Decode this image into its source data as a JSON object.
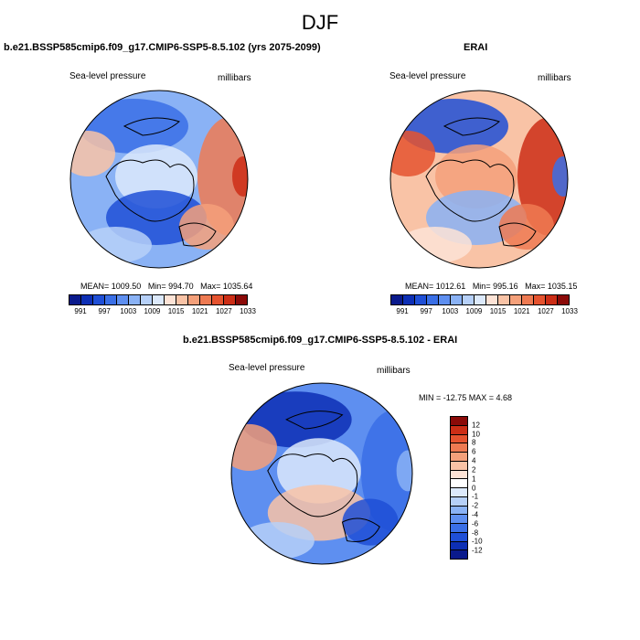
{
  "title": "DJF",
  "panels": [
    {
      "title": "b.e21.BSSP585cmip6.f09_g17.CMIP6-SSP5-8.5.102 (yrs 2075-2099)",
      "left_label": "Sea-level pressure",
      "right_label": "millibars",
      "stats": {
        "mean": "MEAN= 1009.50",
        "min": "Min= 994.70",
        "max": "Max= 1035.64"
      },
      "colorbar_ticks": [
        "991",
        "997",
        "1003",
        "1009",
        "1015",
        "1021",
        "1027",
        "1033"
      ]
    },
    {
      "title": "ERAI",
      "left_label": "Sea-level pressure",
      "right_label": "millibars",
      "stats": {
        "mean": "MEAN= 1012.61",
        "min": "Min= 995.16",
        "max": "Max= 1035.15"
      },
      "colorbar_ticks": [
        "991",
        "997",
        "1003",
        "1009",
        "1015",
        "1021",
        "1027",
        "1033"
      ]
    },
    {
      "title": "b.e21.BSSP585cmip6.f09_g17.CMIP6-SSP5-8.5.102 - ERAI",
      "left_label": "Sea-level pressure",
      "right_label": "millibars",
      "minmax": "MIN = -12.75 MAX =   4.68",
      "colorbar_ticks": [
        "12",
        "10",
        "8",
        "6",
        "4",
        "2",
        "1",
        "0",
        "-1",
        "-2",
        "-4",
        "-6",
        "-8",
        "-10",
        "-12"
      ]
    }
  ],
  "colors": {
    "abs_scale": [
      "#0a1a8c",
      "#0d2fb5",
      "#1f4fd6",
      "#3a6fe6",
      "#5e8ff0",
      "#8ab2f5",
      "#b6d0f8",
      "#dce9fb",
      "#fde3d6",
      "#f9c3a6",
      "#f4a07a",
      "#ee7a52",
      "#e5532f",
      "#cc2e16",
      "#8b0a08"
    ],
    "diff_scale": [
      "#8b0a08",
      "#cc2e16",
      "#e5532f",
      "#ee7a52",
      "#f4a07a",
      "#f9c3a6",
      "#fde3d6",
      "#ffffff",
      "#dce9fb",
      "#b6d0f8",
      "#8ab2f5",
      "#5e8ff0",
      "#3a6fe6",
      "#1f4fd6",
      "#0d2fb5",
      "#0a1a8c"
    ]
  },
  "map_fields": [
    {
      "base": "#8ab2f5",
      "blobs": [
        {
          "color": "#3a6fe6"
        },
        {
          "color": "#dce9fb"
        },
        {
          "color": "#f9c3a6"
        },
        {
          "color": "#ee7a52"
        },
        {
          "color": "#cc2e16"
        },
        {
          "color": "#1f4fd6"
        },
        {
          "color": "#f4a07a"
        },
        {
          "color": "#b6d0f8"
        }
      ]
    },
    {
      "base": "#f9c3a6",
      "blobs": [
        {
          "color": "#1f4fd6"
        },
        {
          "color": "#f4a07a"
        },
        {
          "color": "#e5532f"
        },
        {
          "color": "#cc2e16"
        },
        {
          "color": "#3a6fe6"
        },
        {
          "color": "#8ab2f5"
        },
        {
          "color": "#ee7a52"
        },
        {
          "color": "#fde3d6"
        }
      ]
    },
    {
      "base": "#5e8ff0",
      "blobs": [
        {
          "color": "#0d2fb5"
        },
        {
          "color": "#dce9fb"
        },
        {
          "color": "#f4a07a"
        },
        {
          "color": "#3a6fe6"
        },
        {
          "color": "#8ab2f5"
        },
        {
          "color": "#f9c3a6"
        },
        {
          "color": "#1f4fd6"
        },
        {
          "color": "#b6d0f8"
        }
      ]
    }
  ]
}
